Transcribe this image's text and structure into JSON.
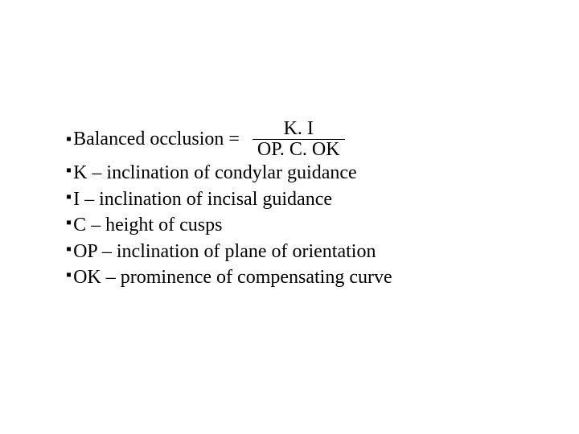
{
  "equation": {
    "label": "Balanced occlusion = ",
    "numerator": "K. I",
    "denominator": "OP. C. OK"
  },
  "defs": [
    "K – inclination of condylar guidance",
    "I – inclination of incisal guidance",
    "C – height of cusps",
    "OP – inclination of plane of orientation",
    "OK – prominence of compensating curve"
  ],
  "bullet_glyph": "▪",
  "colors": {
    "text": "#000000",
    "background": "#ffffff"
  },
  "typography": {
    "font_family": "Times New Roman",
    "font_size_pt": 18
  }
}
